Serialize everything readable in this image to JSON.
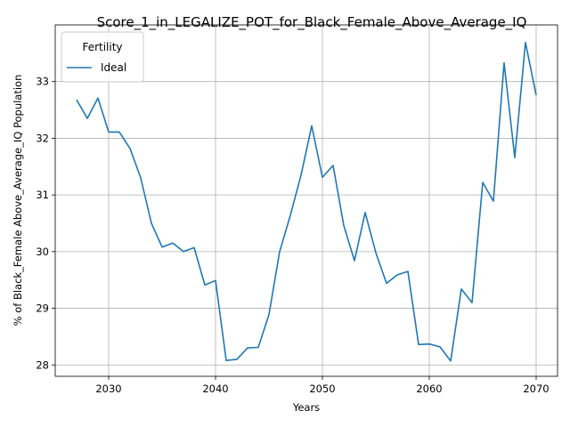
{
  "chart_data": {
    "type": "line",
    "title": "Score_1_in_LEGALIZE_POT_for_Black_Female_Above_Average_IQ",
    "xlabel": "Years",
    "ylabel": "% of Black_Female Above_Average_IQ Population",
    "xlim": [
      2025,
      2072
    ],
    "ylim": [
      27.8,
      34.0
    ],
    "xticks": [
      "2030",
      "2040",
      "2050",
      "2060",
      "2070"
    ],
    "yticks": [
      "28",
      "29",
      "30",
      "31",
      "32",
      "33"
    ],
    "grid": true,
    "legend": {
      "title": "Fertility",
      "placement": "top-left"
    },
    "series": [
      {
        "name": "Ideal",
        "color": "#1f77b4",
        "x": [
          2027,
          2028,
          2029,
          2030,
          2031,
          2032,
          2033,
          2034,
          2035,
          2036,
          2037,
          2038,
          2039,
          2040,
          2041,
          2042,
          2043,
          2044,
          2045,
          2046,
          2047,
          2048,
          2049,
          2050,
          2051,
          2052,
          2053,
          2054,
          2055,
          2056,
          2057,
          2058,
          2059,
          2060,
          2061,
          2062,
          2063,
          2064,
          2065,
          2066,
          2067,
          2068,
          2069,
          2070
        ],
        "values": [
          32.68,
          32.35,
          32.71,
          32.11,
          32.11,
          31.82,
          31.3,
          30.5,
          30.08,
          30.15,
          30.0,
          30.07,
          29.41,
          29.49,
          28.08,
          28.1,
          28.3,
          28.31,
          28.89,
          30.0,
          30.64,
          31.35,
          32.22,
          31.31,
          31.52,
          30.46,
          29.84,
          30.69,
          29.98,
          29.44,
          29.59,
          29.65,
          28.36,
          28.37,
          28.32,
          28.07,
          29.34,
          29.1,
          31.22,
          30.89,
          33.33,
          31.66,
          33.69,
          32.76
        ]
      }
    ]
  }
}
